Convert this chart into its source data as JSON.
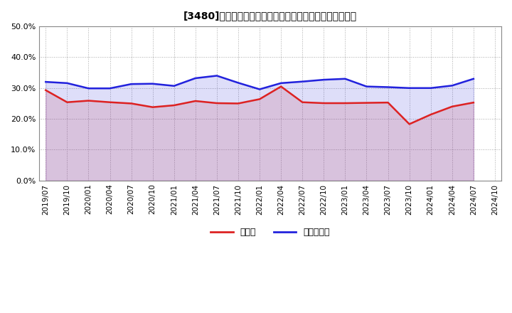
{
  "title": "[3480]　現顔金、有利子負債の総資産に対する比率の推移",
  "x_labels": [
    "2019/07",
    "2019/10",
    "2020/01",
    "2020/04",
    "2020/07",
    "2020/10",
    "2021/01",
    "2021/04",
    "2021/07",
    "2021/10",
    "2022/01",
    "2022/04",
    "2022/07",
    "2022/10",
    "2023/01",
    "2023/04",
    "2023/07",
    "2023/10",
    "2024/01",
    "2024/04",
    "2024/07",
    "2024/10"
  ],
  "genkin": [
    0.293,
    0.254,
    0.259,
    0.254,
    0.25,
    0.238,
    0.244,
    0.258,
    0.251,
    0.25,
    0.264,
    0.305,
    0.254,
    0.251,
    0.251,
    0.252,
    0.253,
    0.183,
    0.214,
    0.24,
    0.253,
    null
  ],
  "yuri": [
    0.32,
    0.316,
    0.299,
    0.299,
    0.313,
    0.314,
    0.307,
    0.332,
    0.34,
    0.317,
    0.296,
    0.316,
    0.321,
    0.327,
    0.33,
    0.305,
    0.303,
    0.3,
    0.3,
    0.308,
    0.33,
    null
  ],
  "genkin_color": "#dd2222",
  "yuri_color": "#2222dd",
  "background_color": "#ffffff",
  "plot_bg_color": "#ffffff",
  "grid_color": "#aaaaaa",
  "legend_genkin": "現顔金",
  "legend_yuri": "有利子負債",
  "ylim": [
    0.0,
    0.5
  ],
  "yticks": [
    0.0,
    0.1,
    0.2,
    0.3,
    0.4,
    0.5
  ]
}
